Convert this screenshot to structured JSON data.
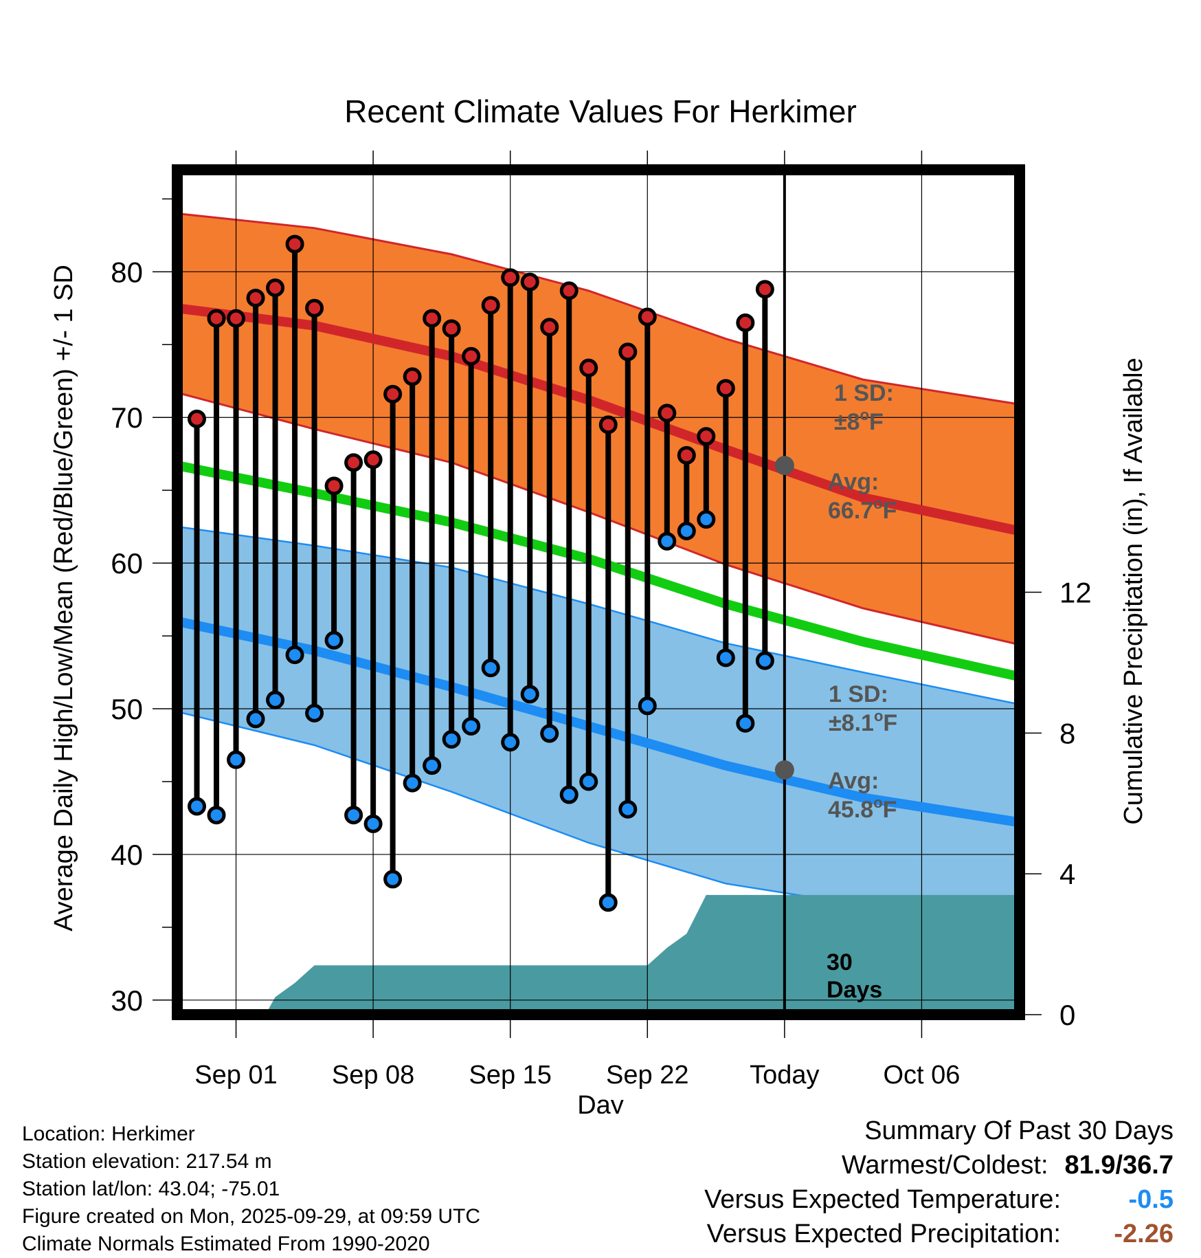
{
  "chart_data": {
    "type": "range-dot",
    "title": "Recent Climate Values For Herkimer",
    "xlabel": "Day",
    "ylabel": "Average Daily High/Low/Mean (Red/Blue/Green) +/- 1 SD",
    "ylabel_right": "Cumulative Precipitation (in), If Available",
    "ylim": [
      29,
      87
    ],
    "ylim_right": [
      0,
      24
    ],
    "x_range_days": [
      -2,
      41
    ],
    "y_ticks": [
      30,
      40,
      50,
      60,
      70,
      80
    ],
    "y_ticks_right": [
      0,
      4,
      8,
      12
    ],
    "x_ticks": [
      {
        "day": 1,
        "label": "Sep 01"
      },
      {
        "day": 8,
        "label": "Sep 08"
      },
      {
        "day": 15,
        "label": "Sep 15"
      },
      {
        "day": 22,
        "label": "Sep 22"
      },
      {
        "day": 29,
        "label": "Today"
      },
      {
        "day": 36,
        "label": "Oct 06"
      }
    ],
    "today_day": 29,
    "days": [
      -1,
      0,
      1,
      2,
      3,
      4,
      5,
      6,
      7,
      8,
      9,
      10,
      11,
      12,
      13,
      14,
      15,
      16,
      17,
      18,
      19,
      20,
      21,
      22,
      23,
      24,
      25,
      26,
      27,
      28
    ],
    "highs": [
      69.9,
      76.8,
      76.8,
      78.2,
      78.9,
      81.9,
      77.5,
      65.3,
      66.9,
      67.1,
      71.6,
      72.8,
      76.8,
      76.1,
      74.2,
      77.7,
      79.6,
      79.3,
      76.2,
      78.7,
      73.4,
      69.5,
      74.5,
      76.9,
      70.3,
      67.4,
      68.7,
      72.0,
      76.5,
      78.8
    ],
    "lows": [
      43.3,
      42.7,
      46.5,
      49.3,
      50.6,
      53.7,
      49.7,
      54.7,
      42.7,
      42.1,
      38.3,
      44.9,
      46.1,
      47.9,
      48.8,
      52.8,
      47.7,
      51.0,
      48.3,
      44.1,
      45.0,
      36.7,
      43.1,
      50.2,
      61.5,
      62.2,
      63.0,
      53.5,
      49.0,
      53.3
    ],
    "normals": {
      "days": [
        -2,
        5,
        12,
        19,
        26,
        33,
        41
      ],
      "high_avg": [
        77.5,
        76.3,
        74.2,
        71.2,
        67.8,
        64.5,
        62.2
      ],
      "high_sd_upper": [
        84.0,
        83.0,
        81.2,
        78.7,
        75.4,
        72.6,
        70.9
      ],
      "high_sd_lower": [
        71.7,
        69.2,
        66.9,
        63.5,
        59.9,
        56.9,
        54.4
      ],
      "mean_avg": [
        66.7,
        64.8,
        62.8,
        60.3,
        57.2,
        54.6,
        52.2
      ],
      "low_avg": [
        56.0,
        54.0,
        51.5,
        48.8,
        46.1,
        43.9,
        42.2
      ],
      "low_sd_upper": [
        62.5,
        61.2,
        59.7,
        57.2,
        54.5,
        52.5,
        50.3
      ],
      "low_sd_lower": [
        49.8,
        47.5,
        44.3,
        40.8,
        38.0,
        36.5,
        34.8
      ]
    },
    "today_markers": {
      "high_avg": 66.7,
      "low_avg": 45.8
    },
    "annotations": {
      "high_sd_label": "1 SD:",
      "high_sd_value": "±8",
      "low_sd_label": "1 SD:",
      "low_sd_value": "±8.1",
      "avg_label": "Avg:",
      "high_avg_value": "66.7",
      "low_avg_value": "45.8",
      "degree_symbol": "o",
      "unit_letter": "F",
      "days_count": "30",
      "days_word": "Days"
    },
    "precip": {
      "days": [
        1.5,
        2.5,
        3.0,
        4.0,
        5.0,
        21.0,
        22.0,
        23.0,
        24.0,
        25.0,
        29.0,
        33.0,
        41.0
      ],
      "values": [
        0.0,
        0.0,
        0.5,
        0.9,
        1.4,
        1.4,
        1.4,
        1.9,
        2.3,
        3.4,
        3.4,
        3.4,
        3.4
      ],
      "base_day": -2
    }
  },
  "footer": {
    "location": "Location: Herkimer",
    "elevation": "Station elevation: 217.54 m",
    "latlon": "Station lat/lon: 43.04; -75.01",
    "created": "Figure created on Mon, 2025-09-29, at 09:59 UTC",
    "normals": "Climate Normals Estimated From 1990-2020"
  },
  "summary": {
    "title": "Summary Of Past 30 Days",
    "warm_cold_label": "Warmest/Coldest:",
    "warm_cold_value": "81.9/36.7",
    "temp_label": "Versus Expected Temperature:",
    "temp_value": "-0.5",
    "precip_label": "Versus Expected Precipitation:",
    "precip_value": "-2.26"
  },
  "colors": {
    "high_band": "#f47c2f",
    "high_line": "#d0262a",
    "low_band": "#86c0e6",
    "low_line": "#1d8cf3",
    "mean_line": "#12cc12",
    "precip": "#4a9ba1",
    "annotation": "#555555",
    "high_dot": "#d0262a",
    "low_dot": "#1d8cf3",
    "temp_value": "#1d8cf3",
    "precip_value": "#a0522d"
  }
}
